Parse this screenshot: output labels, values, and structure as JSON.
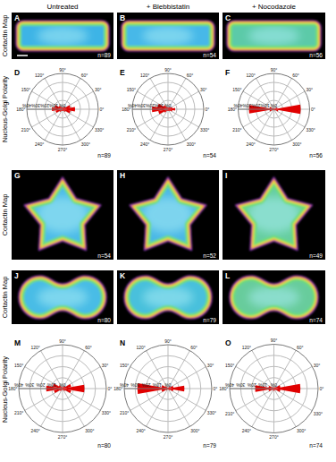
{
  "column_titles": [
    "Untreated",
    "+ Blebbistatin",
    "+ Nocodazole"
  ],
  "row_labels": [
    "Cortactin Map",
    "Nucleus-Golgi Polarity",
    "Cortactin Map",
    "Cortactin Map",
    "Nucleus-Golgi Polarity"
  ],
  "maps": [
    {
      "panel": "A",
      "annotation": "n=89",
      "shape": "rectangle"
    },
    {
      "panel": "B",
      "annotation": "n=54",
      "shape": "rectangle"
    },
    {
      "panel": "C",
      "annotation": "n=56",
      "shape": "rectangle"
    },
    {
      "panel": "G",
      "annotation": "n=54",
      "shape": "star"
    },
    {
      "panel": "H",
      "annotation": "n=52",
      "shape": "star"
    },
    {
      "panel": "I",
      "annotation": "n=49",
      "shape": "star"
    },
    {
      "panel": "J",
      "annotation": "n=80",
      "shape": "peanut"
    },
    {
      "panel": "K",
      "annotation": "n=79",
      "shape": "peanut"
    },
    {
      "panel": "L",
      "annotation": "n=74",
      "shape": "peanut"
    }
  ],
  "chart_data": [
    {
      "type": "polar_bar",
      "panel": "D",
      "annotation": "n=89",
      "color": "#e00000",
      "grid": true,
      "x": [
        0,
        20,
        40,
        60,
        80,
        100,
        120,
        140,
        160,
        180,
        200,
        220,
        240,
        260,
        280,
        300,
        320,
        340
      ],
      "values": [
        14,
        9,
        4,
        2,
        2,
        2,
        3,
        5,
        9,
        12,
        8,
        4,
        2,
        2,
        2,
        2,
        4,
        9
      ],
      "ylim": [
        0,
        40
      ],
      "yticks": [
        {
          "value": 0,
          "label": "0%"
        },
        {
          "value": 10,
          "label": "10%"
        },
        {
          "value": 20,
          "label": "20%"
        },
        {
          "value": 30,
          "label": "30%"
        },
        {
          "value": 40,
          "label": "40%"
        }
      ],
      "xticks": [
        {
          "value": 0,
          "label": "0°"
        },
        {
          "value": 30,
          "label": "30°"
        },
        {
          "value": 60,
          "label": "60°"
        },
        {
          "value": 90,
          "label": "90°"
        },
        {
          "value": 120,
          "label": "120°"
        },
        {
          "value": 150,
          "label": "150°"
        },
        {
          "value": 180,
          "label": "180°"
        },
        {
          "value": 210,
          "label": "210°"
        },
        {
          "value": 240,
          "label": "240°"
        },
        {
          "value": 270,
          "label": "270°"
        },
        {
          "value": 300,
          "label": "300°"
        },
        {
          "value": 330,
          "label": "330°"
        }
      ]
    },
    {
      "type": "polar_bar",
      "panel": "E",
      "annotation": "n=54",
      "color": "#e00000",
      "grid": true,
      "x": [
        0,
        20,
        40,
        60,
        80,
        100,
        120,
        140,
        160,
        180,
        200,
        220,
        240,
        260,
        280,
        300,
        320,
        340
      ],
      "values": [
        8,
        5,
        3,
        2,
        2,
        2,
        3,
        6,
        12,
        18,
        11,
        5,
        2,
        2,
        2,
        2,
        3,
        5
      ],
      "ylim": [
        0,
        40
      ],
      "yticks": [
        {
          "value": 0,
          "label": "0%"
        },
        {
          "value": 10,
          "label": "10%"
        },
        {
          "value": 20,
          "label": "20%"
        },
        {
          "value": 30,
          "label": "30%"
        },
        {
          "value": 40,
          "label": "40%"
        }
      ],
      "xticks": [
        {
          "value": 0,
          "label": "0°"
        },
        {
          "value": 30,
          "label": "30°"
        },
        {
          "value": 60,
          "label": "60°"
        },
        {
          "value": 90,
          "label": "90°"
        },
        {
          "value": 120,
          "label": "120°"
        },
        {
          "value": 150,
          "label": "150°"
        },
        {
          "value": 180,
          "label": "180°"
        },
        {
          "value": 210,
          "label": "210°"
        },
        {
          "value": 240,
          "label": "240°"
        },
        {
          "value": 270,
          "label": "270°"
        },
        {
          "value": 300,
          "label": "300°"
        },
        {
          "value": 330,
          "label": "330°"
        }
      ]
    },
    {
      "type": "polar_bar",
      "panel": "F",
      "annotation": "n=56",
      "color": "#e00000",
      "grid": true,
      "x": [
        0,
        20,
        40,
        60,
        80,
        100,
        120,
        140,
        160,
        180,
        200,
        220,
        240,
        260,
        280,
        300,
        320,
        340
      ],
      "values": [
        30,
        4,
        1,
        1,
        1,
        1,
        1,
        2,
        5,
        28,
        5,
        2,
        1,
        1,
        1,
        1,
        2,
        5
      ],
      "ylim": [
        0,
        40
      ],
      "yticks": [
        {
          "value": 0,
          "label": "0%"
        },
        {
          "value": 10,
          "label": "10%"
        },
        {
          "value": 20,
          "label": "20%"
        },
        {
          "value": 30,
          "label": "30%"
        },
        {
          "value": 40,
          "label": "40%"
        }
      ],
      "xticks": [
        {
          "value": 0,
          "label": "0°"
        },
        {
          "value": 30,
          "label": "30°"
        },
        {
          "value": 60,
          "label": "60°"
        },
        {
          "value": 90,
          "label": "90°"
        },
        {
          "value": 120,
          "label": "120°"
        },
        {
          "value": 150,
          "label": "150°"
        },
        {
          "value": 180,
          "label": "180°"
        },
        {
          "value": 210,
          "label": "210°"
        },
        {
          "value": 240,
          "label": "240°"
        },
        {
          "value": 270,
          "label": "270°"
        },
        {
          "value": 300,
          "label": "300°"
        },
        {
          "value": 330,
          "label": "330°"
        }
      ]
    },
    {
      "type": "polar_bar",
      "panel": "M",
      "annotation": "n=80",
      "color": "#e00000",
      "grid": true,
      "x": [
        0,
        20,
        40,
        60,
        80,
        100,
        120,
        140,
        160,
        180,
        200,
        220,
        240,
        260,
        280,
        300,
        320,
        340
      ],
      "values": [
        20,
        8,
        3,
        2,
        1,
        1,
        2,
        4,
        9,
        15,
        8,
        3,
        2,
        1,
        1,
        2,
        3,
        8
      ],
      "ylim": [
        0,
        40
      ],
      "yticks": [
        {
          "value": 0,
          "label": "0%"
        },
        {
          "value": 10,
          "label": "10%"
        },
        {
          "value": 20,
          "label": "20%"
        },
        {
          "value": 30,
          "label": "30%"
        },
        {
          "value": 40,
          "label": "40%"
        }
      ],
      "xticks": [
        {
          "value": 0,
          "label": "0°"
        },
        {
          "value": 30,
          "label": "30°"
        },
        {
          "value": 60,
          "label": "60°"
        },
        {
          "value": 90,
          "label": "90°"
        },
        {
          "value": 120,
          "label": "120°"
        },
        {
          "value": 150,
          "label": "150°"
        },
        {
          "value": 180,
          "label": "180°"
        },
        {
          "value": 210,
          "label": "210°"
        },
        {
          "value": 240,
          "label": "240°"
        },
        {
          "value": 270,
          "label": "270°"
        },
        {
          "value": 300,
          "label": "300°"
        },
        {
          "value": 330,
          "label": "330°"
        }
      ]
    },
    {
      "type": "polar_bar",
      "panel": "N",
      "annotation": "n=79",
      "color": "#e00000",
      "grid": true,
      "x": [
        0,
        20,
        40,
        60,
        80,
        100,
        120,
        140,
        160,
        180,
        200,
        220,
        240,
        260,
        280,
        300,
        320,
        340
      ],
      "values": [
        15,
        5,
        2,
        1,
        1,
        1,
        1,
        3,
        6,
        28,
        6,
        2,
        1,
        1,
        1,
        1,
        2,
        5
      ],
      "ylim": [
        0,
        40
      ],
      "yticks": [
        {
          "value": 0,
          "label": "0%"
        },
        {
          "value": 10,
          "label": "10%"
        },
        {
          "value": 20,
          "label": "20%"
        },
        {
          "value": 30,
          "label": "30%"
        },
        {
          "value": 40,
          "label": "40%"
        }
      ],
      "xticks": [
        {
          "value": 0,
          "label": "0°"
        },
        {
          "value": 30,
          "label": "30°"
        },
        {
          "value": 60,
          "label": "60°"
        },
        {
          "value": 90,
          "label": "90°"
        },
        {
          "value": 120,
          "label": "120°"
        },
        {
          "value": 150,
          "label": "150°"
        },
        {
          "value": 180,
          "label": "180°"
        },
        {
          "value": 210,
          "label": "210°"
        },
        {
          "value": 240,
          "label": "240°"
        },
        {
          "value": 270,
          "label": "270°"
        },
        {
          "value": 300,
          "label": "300°"
        },
        {
          "value": 330,
          "label": "330°"
        }
      ]
    },
    {
      "type": "polar_bar",
      "panel": "O",
      "annotation": "n=74",
      "color": "#e00000",
      "grid": true,
      "x": [
        0,
        20,
        40,
        60,
        80,
        100,
        120,
        140,
        160,
        180,
        200,
        220,
        240,
        260,
        280,
        300,
        320,
        340
      ],
      "values": [
        24,
        6,
        2,
        1,
        1,
        1,
        1,
        2,
        5,
        17,
        5,
        2,
        1,
        2,
        2,
        1,
        2,
        6
      ],
      "ylim": [
        0,
        40
      ],
      "yticks": [
        {
          "value": 0,
          "label": "0%"
        },
        {
          "value": 10,
          "label": "10%"
        },
        {
          "value": 20,
          "label": "20%"
        },
        {
          "value": 30,
          "label": "30%"
        },
        {
          "value": 40,
          "label": "40%"
        }
      ],
      "xticks": [
        {
          "value": 0,
          "label": "0°"
        },
        {
          "value": 30,
          "label": "30°"
        },
        {
          "value": 60,
          "label": "60°"
        },
        {
          "value": 90,
          "label": "90°"
        },
        {
          "value": 120,
          "label": "120°"
        },
        {
          "value": 150,
          "label": "150°"
        },
        {
          "value": 180,
          "label": "180°"
        },
        {
          "value": 210,
          "label": "210°"
        },
        {
          "value": 240,
          "label": "240°"
        },
        {
          "value": 270,
          "label": "270°"
        },
        {
          "value": 300,
          "label": "300°"
        },
        {
          "value": 330,
          "label": "330°"
        }
      ]
    }
  ]
}
